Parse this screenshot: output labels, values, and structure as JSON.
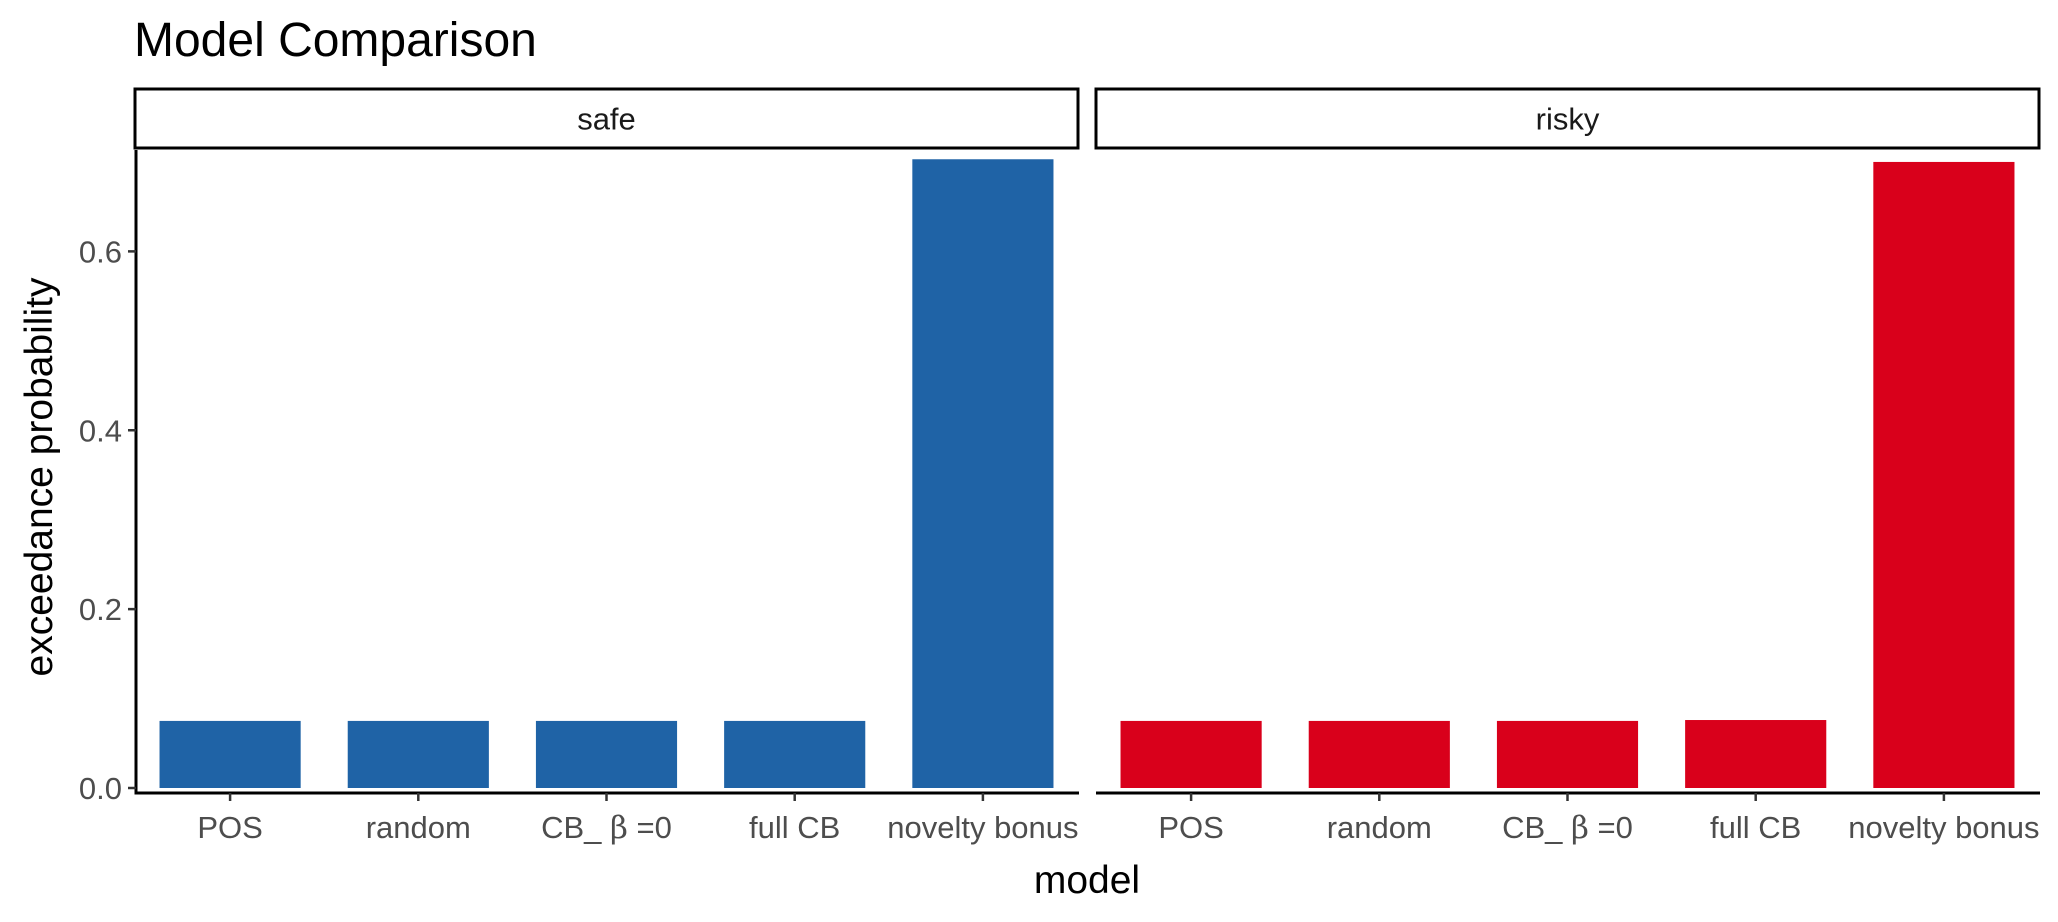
{
  "chart_data": {
    "type": "bar",
    "title": "Model Comparison",
    "xlabel": "model",
    "ylabel": "exceedance probability",
    "ylim": [
      0,
      0.71
    ],
    "yticks": [
      0.0,
      0.2,
      0.4,
      0.6
    ],
    "ytick_labels": [
      "0.0",
      "0.2",
      "0.4",
      "0.6"
    ],
    "grid": false,
    "categories": [
      {
        "pre": "POS",
        "greek": "",
        "post": ""
      },
      {
        "pre": "random",
        "greek": "",
        "post": ""
      },
      {
        "pre": "CB_ ",
        "greek": "β",
        "post": " =0"
      },
      {
        "pre": "full CB",
        "greek": "",
        "post": ""
      },
      {
        "pre": "novelty bonus",
        "greek": "",
        "post": ""
      }
    ],
    "panels": [
      {
        "name": "safe",
        "color": "#1f63a6",
        "values": [
          0.075,
          0.075,
          0.075,
          0.075,
          0.703
        ]
      },
      {
        "name": "risky",
        "color": "#d9001b",
        "values": [
          0.075,
          0.075,
          0.075,
          0.076,
          0.7
        ]
      }
    ]
  }
}
